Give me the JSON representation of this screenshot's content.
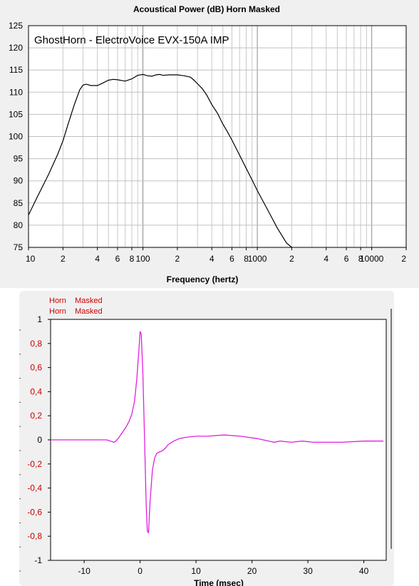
{
  "chart_data": [
    {
      "type": "line",
      "title": "Acoustical Power (dB)   Horn   Masked",
      "annotation": "GhostHorn - ElectroVoice EVX-150A IMP",
      "xlabel": "Frequency (hertz)",
      "ylabel": "",
      "x_scale": "log",
      "xlim": [
        10,
        20000
      ],
      "ylim": [
        75,
        125
      ],
      "grid": true,
      "y_ticks": [
        "125",
        "120",
        "115",
        "110",
        "105",
        "100",
        "95",
        "90",
        "85",
        "80",
        "75"
      ],
      "x_tick_labels": [
        {
          "x": 10,
          "label": "10"
        },
        {
          "x": 20,
          "label": "2"
        },
        {
          "x": 40,
          "label": "4"
        },
        {
          "x": 60,
          "label": "6"
        },
        {
          "x": 80,
          "label": "8"
        },
        {
          "x": 100,
          "label": "100"
        },
        {
          "x": 200,
          "label": "2"
        },
        {
          "x": 400,
          "label": "4"
        },
        {
          "x": 600,
          "label": "6"
        },
        {
          "x": 800,
          "label": "8"
        },
        {
          "x": 1000,
          "label": "1000"
        },
        {
          "x": 2000,
          "label": "2"
        },
        {
          "x": 4000,
          "label": "4"
        },
        {
          "x": 6000,
          "label": "6"
        },
        {
          "x": 8000,
          "label": "8"
        },
        {
          "x": 10000,
          "label": "10000"
        },
        {
          "x": 20000,
          "label": "2"
        }
      ],
      "series": [
        {
          "name": "Horn Masked",
          "color": "#000000",
          "x": [
            10,
            12,
            15,
            18,
            20,
            22,
            25,
            28,
            30,
            32,
            35,
            40,
            45,
            50,
            55,
            60,
            70,
            80,
            90,
            100,
            110,
            120,
            130,
            140,
            150,
            170,
            200,
            230,
            260,
            280,
            300,
            330,
            360,
            400,
            450,
            500,
            550,
            600,
            700,
            800,
            900,
            1000,
            1200,
            1500,
            1800,
            2000
          ],
          "y": [
            82.3,
            86.5,
            91.5,
            96.0,
            99.0,
            102.5,
            107.0,
            110.5,
            111.6,
            111.8,
            111.5,
            111.5,
            112.1,
            112.7,
            112.9,
            112.8,
            112.5,
            113.0,
            113.8,
            114.0,
            113.7,
            113.6,
            113.9,
            114.0,
            113.8,
            113.9,
            113.9,
            113.7,
            113.4,
            112.7,
            111.9,
            110.8,
            109.4,
            107.2,
            105.2,
            102.8,
            101.0,
            99.2,
            95.8,
            92.8,
            90.2,
            87.8,
            84.0,
            79.3,
            76.0,
            74.5
          ]
        }
      ]
    },
    {
      "type": "line",
      "legend": [
        "Horn    Masked",
        "Horn    Masked"
      ],
      "xlabel": "Time (msec)",
      "ylabel": "",
      "xlim": [
        -16,
        44
      ],
      "ylim": [
        -1,
        1
      ],
      "grid": false,
      "x_ticks": [
        "-10",
        "0",
        "10",
        "20",
        "30",
        "40"
      ],
      "y_ticks": [
        "1",
        "0,8",
        "0,6",
        "0,4",
        "0,2",
        "0",
        "-0,2",
        "-0,4",
        "-0,6",
        "-0,8",
        "-1"
      ],
      "series": [
        {
          "name": "Horn Masked",
          "color": "#e020e0",
          "x": [
            -16,
            -6,
            -5.3,
            -4.7,
            -4.3,
            -3.8,
            -3.2,
            -2.6,
            -2.0,
            -1.5,
            -1.0,
            -0.6,
            -0.2,
            0.0,
            0.2,
            0.5,
            0.8,
            1.1,
            1.3,
            1.5,
            1.8,
            2.2,
            2.6,
            3.0,
            3.5,
            4.0,
            4.5,
            5.0,
            6.0,
            7.0,
            8.0,
            10.0,
            12.0,
            15.0,
            18.0,
            21.0,
            23.0,
            24.0,
            25.0,
            27.0,
            29.0,
            31.0,
            33.0,
            36.0,
            40.0,
            43.5
          ],
          "y": [
            0.0,
            0.0,
            -0.01,
            -0.02,
            -0.01,
            0.02,
            0.06,
            0.1,
            0.15,
            0.21,
            0.32,
            0.5,
            0.75,
            0.9,
            0.88,
            0.55,
            0.0,
            -0.55,
            -0.76,
            -0.77,
            -0.5,
            -0.25,
            -0.15,
            -0.11,
            -0.1,
            -0.09,
            -0.07,
            -0.04,
            -0.01,
            0.01,
            0.02,
            0.03,
            0.03,
            0.04,
            0.03,
            0.01,
            -0.01,
            -0.02,
            -0.01,
            -0.02,
            -0.01,
            -0.02,
            -0.02,
            -0.02,
            -0.01,
            -0.01
          ]
        }
      ]
    }
  ]
}
